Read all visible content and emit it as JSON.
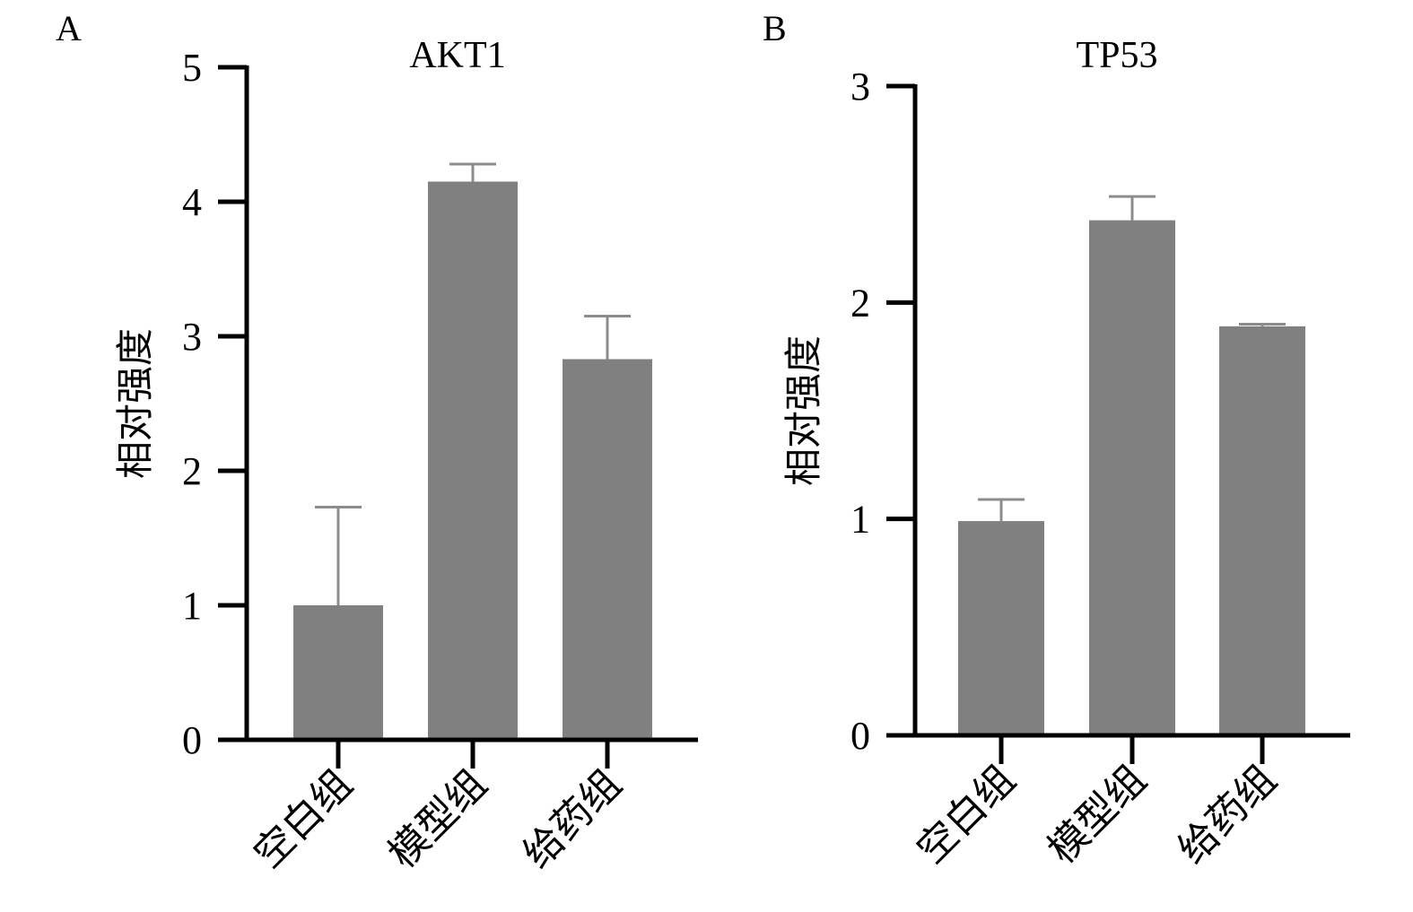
{
  "chart_data": [
    {
      "panel": "A",
      "type": "bar",
      "title": "AKT1",
      "ylabel": "相对强度",
      "xlabel": "",
      "ylim": [
        0,
        5
      ],
      "yticks": [
        "0",
        "1",
        "2",
        "3",
        "4",
        "5"
      ],
      "categories": [
        "空白组",
        "模型组",
        "给药组"
      ],
      "values": [
        1.0,
        4.15,
        2.83
      ],
      "error_upper": [
        1.73,
        4.28,
        3.15
      ],
      "bar_color": "#808080",
      "error_color": "#8c8c8c",
      "grid": false
    },
    {
      "panel": "B",
      "type": "bar",
      "title": "TP53",
      "ylabel": "相对强度",
      "xlabel": "",
      "ylim": [
        0,
        3
      ],
      "yticks": [
        "0",
        "1",
        "2",
        "3"
      ],
      "categories": [
        "空白组",
        "模型组",
        "给药组"
      ],
      "values": [
        0.99,
        2.38,
        1.89
      ],
      "error_upper": [
        1.09,
        2.49,
        1.9
      ],
      "bar_color": "#808080",
      "error_color": "#8c8c8c",
      "grid": false
    }
  ]
}
